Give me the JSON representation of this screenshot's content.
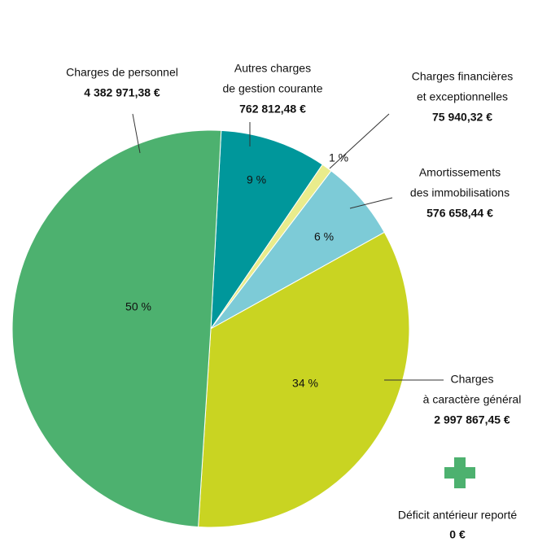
{
  "chart_data": {
    "type": "pie",
    "labels": [
      [
        "Autres charges",
        "de gestion courante"
      ],
      [
        "Charges financières",
        "et exceptionnelles"
      ],
      [
        "Amortissements",
        "des immobilisations"
      ],
      [
        "Charges",
        "à caractère général"
      ],
      [
        "Charges de personnel"
      ]
    ],
    "values": [
      762812.48,
      75940.32,
      576658.44,
      2997867.45,
      4382971.38
    ],
    "value_labels": [
      "762 812,48 €",
      "75 940,32 €",
      "576 658,44 €",
      "2 997 867,45 €",
      "4 382 971,38 €"
    ],
    "percentages": [
      9,
      1,
      6,
      34,
      50
    ],
    "percentage_labels": [
      "9 %",
      "1 %",
      "6 %",
      "34 %",
      "50 %"
    ],
    "colors": [
      "#00979b",
      "#e9ec8c",
      "#7dcbd7",
      "#c9d422",
      "#4db16f"
    ],
    "deficit": {
      "label": "Déficit antérieur reporté",
      "value": 0,
      "value_label": "0 €"
    }
  }
}
